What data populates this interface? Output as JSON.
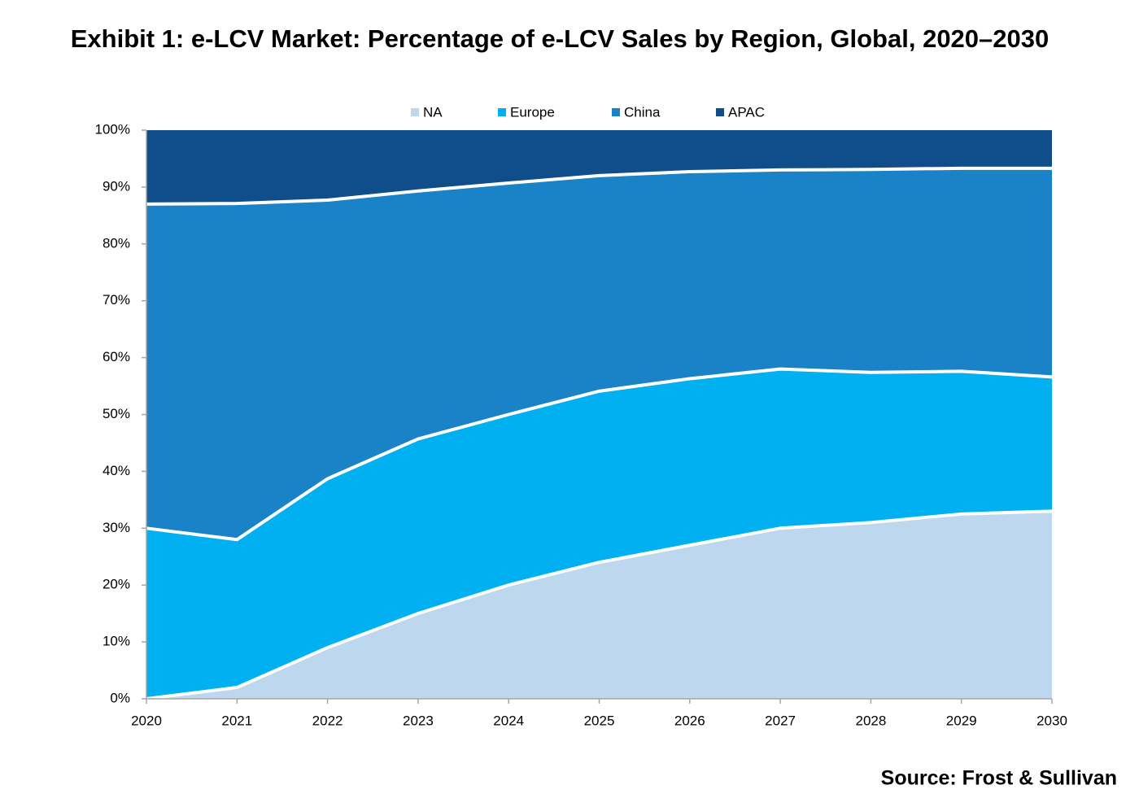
{
  "chart_data": {
    "type": "stacked-area",
    "title": "Exhibit 1: e-LCV Market: Percentage of e-LCV Sales by Region, Global, 2020–2030",
    "source": "Source: Frost & Sullivan",
    "categories": [
      "2020",
      "2021",
      "2022",
      "2023",
      "2024",
      "2025",
      "2026",
      "2027",
      "2028",
      "2029",
      "2030"
    ],
    "series": [
      {
        "name": "NA",
        "color": "#bdd7ee",
        "values": [
          0,
          2,
          9,
          15,
          20,
          24,
          27,
          30,
          31,
          32.5,
          33
        ]
      },
      {
        "name": "Europe",
        "color": "#00b0f0",
        "values": [
          30,
          26,
          29.7,
          30.7,
          30,
          30.1,
          29.3,
          28,
          26.4,
          25.1,
          23.6
        ]
      },
      {
        "name": "China",
        "color": "#1a82c6",
        "values": [
          57,
          59.1,
          49,
          43.6,
          40.7,
          37.9,
          36.4,
          35,
          35.7,
          35.7,
          36.7
        ]
      },
      {
        "name": "APAC",
        "color": "#104e8b",
        "values": [
          13,
          12.9,
          12.3,
          10.7,
          9.3,
          8,
          7.3,
          7,
          6.9,
          6.7,
          6.7
        ]
      }
    ],
    "ylim": [
      0,
      100
    ],
    "yticks": [
      {
        "value": 0,
        "label": "0%"
      },
      {
        "value": 10,
        "label": "10%"
      },
      {
        "value": 20,
        "label": "20%"
      },
      {
        "value": 30,
        "label": "30%"
      },
      {
        "value": 40,
        "label": "40%"
      },
      {
        "value": 50,
        "label": "50%"
      },
      {
        "value": 60,
        "label": "60%"
      },
      {
        "value": 70,
        "label": "70%"
      },
      {
        "value": 80,
        "label": "80%"
      },
      {
        "value": 90,
        "label": "90%"
      },
      {
        "value": 100,
        "label": "100%"
      }
    ],
    "legend": "top"
  }
}
